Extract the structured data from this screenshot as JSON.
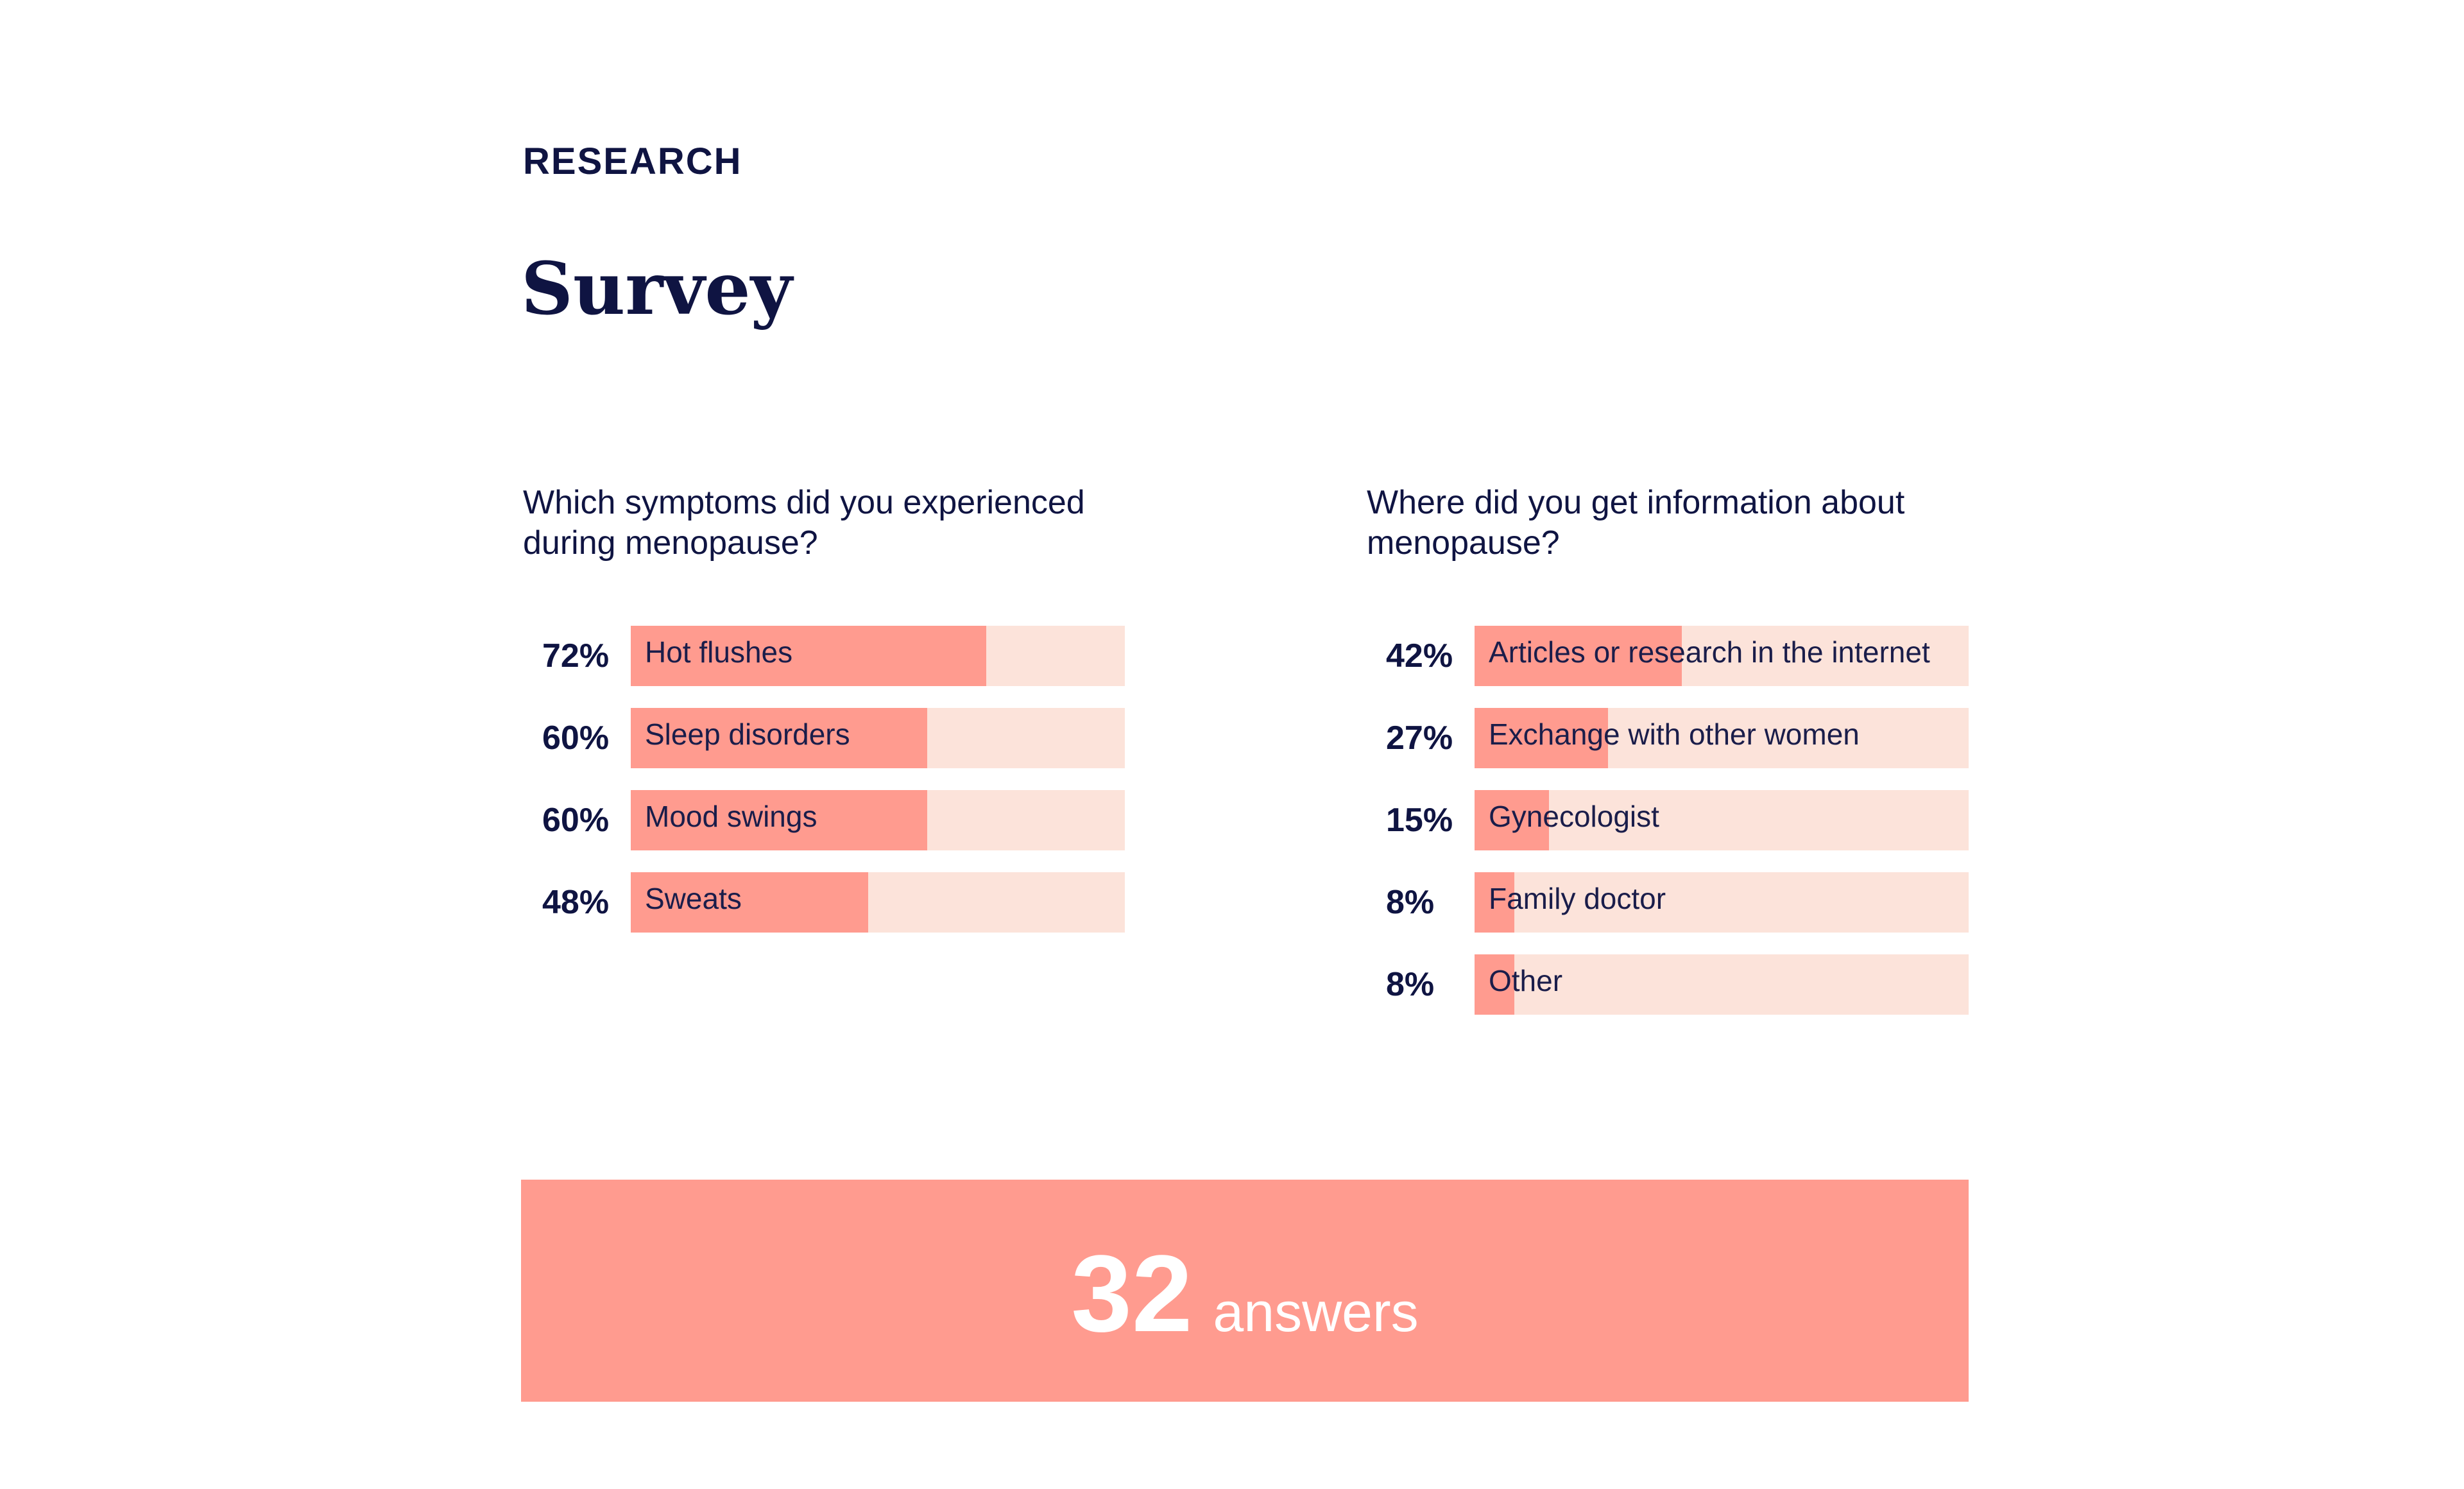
{
  "header": {
    "eyebrow": "RESEARCH",
    "title": "Survey"
  },
  "colors": {
    "text": "#0f1442",
    "bar_fill": "#ff9b8f",
    "bar_track": "#fce3da",
    "answers_bg": "#ff9b8f",
    "answers_text": "#ffffff"
  },
  "chart_data": [
    {
      "type": "bar",
      "orientation": "horizontal",
      "title": "Which symptoms did you experienced during menopause?",
      "unit": "%",
      "xlim": [
        0,
        100
      ],
      "categories": [
        "Hot flushes",
        "Sleep disorders",
        "Mood swings",
        "Sweats"
      ],
      "values": [
        72,
        60,
        60,
        48
      ],
      "value_labels": [
        "72%",
        "60%",
        "60%",
        "48%"
      ]
    },
    {
      "type": "bar",
      "orientation": "horizontal",
      "title": "Where did you get information about menopause?",
      "unit": "%",
      "xlim": [
        0,
        100
      ],
      "categories": [
        "Articles or research in the internet",
        "Exchange with other women",
        "Gynecologist",
        "Family doctor",
        "Other"
      ],
      "values": [
        42,
        27,
        15,
        8,
        8
      ],
      "value_labels": [
        "42%",
        "27%",
        "15%",
        "8%",
        "8%"
      ]
    }
  ],
  "summary": {
    "count": "32",
    "label": "answers"
  }
}
